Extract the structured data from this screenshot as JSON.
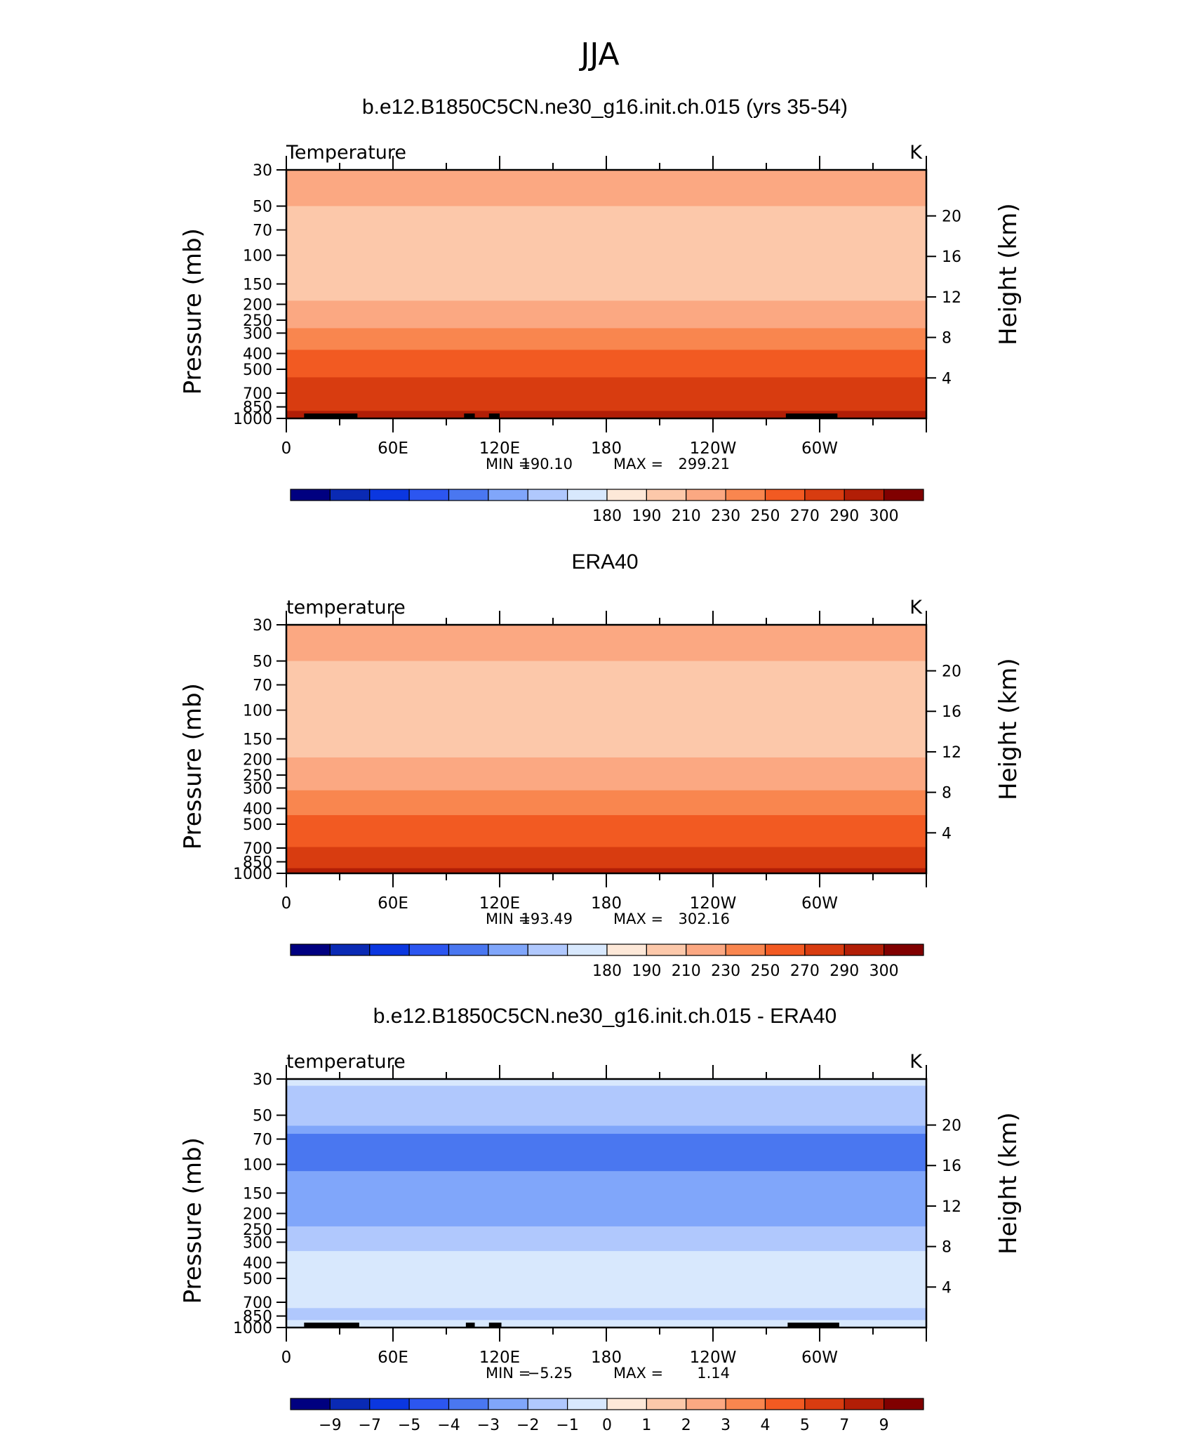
{
  "figure_title": "JJA",
  "chart_data": [
    {
      "type": "heatmap",
      "title": "b.e12.B1850C5CN.ne30_g16.init.ch.015 (yrs 35-54)",
      "variable_label": "Temperature",
      "units": "K",
      "ylabel": "Pressure (mb)",
      "ylabel_right": "Height (km)",
      "yscale": "log",
      "ylim": [
        1000,
        30
      ],
      "pressure_ticks": [
        "30",
        "50",
        "70",
        "100",
        "150",
        "200",
        "250",
        "300",
        "400",
        "500",
        "700",
        "850",
        "1000"
      ],
      "height_ticks": [
        "20",
        "16",
        "12",
        "8",
        "4"
      ],
      "x_ticks": [
        "0",
        "60E",
        "120E",
        "180",
        "120W",
        "60W"
      ],
      "stats": {
        "min_label": "MIN =",
        "min": "190.10",
        "max_label": "MAX =",
        "max": "299.21"
      },
      "colorbar": {
        "labels": [
          "180",
          "190",
          "210",
          "230",
          "250",
          "270",
          "290",
          "300"
        ],
        "colors": [
          "#000080",
          "#0a2ab4",
          "#0b37e0",
          "#2c56f0",
          "#4a77f0",
          "#80a6fa",
          "#b0c8fd",
          "#d8e8fd",
          "#fde8d8",
          "#fcc8aa",
          "#fba882",
          "#f9864f",
          "#f25a22",
          "#d83c10",
          "#b21e06",
          "#800000"
        ]
      },
      "levels": [
        {
          "p_top": 30,
          "p_bottom": 50,
          "value": 210
        },
        {
          "p_top": 50,
          "p_bottom": 70,
          "value": 205
        },
        {
          "p_top": 70,
          "p_bottom": 145,
          "value": 198
        },
        {
          "p_top": 145,
          "p_bottom": 190,
          "value": 205
        },
        {
          "p_top": 190,
          "p_bottom": 240,
          "value": 215
        },
        {
          "p_top": 240,
          "p_bottom": 280,
          "value": 225
        },
        {
          "p_top": 280,
          "p_bottom": 320,
          "value": 235
        },
        {
          "p_top": 320,
          "p_bottom": 380,
          "value": 245
        },
        {
          "p_top": 380,
          "p_bottom": 450,
          "value": 255
        },
        {
          "p_top": 450,
          "p_bottom": 560,
          "value": 262
        },
        {
          "p_top": 560,
          "p_bottom": 730,
          "value": 272
        },
        {
          "p_top": 730,
          "p_bottom": 900,
          "value": 282
        },
        {
          "p_top": 900,
          "p_bottom": 1000,
          "value": 292
        }
      ],
      "topography": [
        [
          10,
          40
        ],
        [
          100,
          106
        ],
        [
          114,
          120
        ],
        [
          281,
          310
        ]
      ]
    },
    {
      "type": "heatmap",
      "title": "ERA40",
      "variable_label": "temperature",
      "units": "K",
      "ylabel": "Pressure (mb)",
      "ylabel_right": "Height (km)",
      "yscale": "log",
      "ylim": [
        1000,
        30
      ],
      "pressure_ticks": [
        "30",
        "50",
        "70",
        "100",
        "150",
        "200",
        "250",
        "300",
        "400",
        "500",
        "700",
        "850",
        "1000"
      ],
      "height_ticks": [
        "20",
        "16",
        "12",
        "8",
        "4"
      ],
      "x_ticks": [
        "0",
        "60E",
        "120E",
        "180",
        "120W",
        "60W"
      ],
      "stats": {
        "min_label": "MIN =",
        "min": "193.49",
        "max_label": "MAX =",
        "max": "302.16"
      },
      "colorbar": {
        "labels": [
          "180",
          "190",
          "210",
          "230",
          "250",
          "270",
          "290",
          "300"
        ],
        "colors": [
          "#000080",
          "#0a2ab4",
          "#0b37e0",
          "#2c56f0",
          "#4a77f0",
          "#80a6fa",
          "#b0c8fd",
          "#d8e8fd",
          "#fde8d8",
          "#fcc8aa",
          "#fba882",
          "#f9864f",
          "#f25a22",
          "#d83c10",
          "#b21e06",
          "#800000"
        ]
      },
      "levels": [
        {
          "p_top": 30,
          "p_bottom": 50,
          "value": 210
        },
        {
          "p_top": 50,
          "p_bottom": 85,
          "value": 205
        },
        {
          "p_top": 85,
          "p_bottom": 135,
          "value": 198
        },
        {
          "p_top": 135,
          "p_bottom": 195,
          "value": 205
        },
        {
          "p_top": 195,
          "p_bottom": 255,
          "value": 215
        },
        {
          "p_top": 255,
          "p_bottom": 310,
          "value": 225
        },
        {
          "p_top": 310,
          "p_bottom": 370,
          "value": 235
        },
        {
          "p_top": 370,
          "p_bottom": 440,
          "value": 245
        },
        {
          "p_top": 440,
          "p_bottom": 540,
          "value": 255
        },
        {
          "p_top": 540,
          "p_bottom": 690,
          "value": 265
        },
        {
          "p_top": 690,
          "p_bottom": 840,
          "value": 275
        },
        {
          "p_top": 840,
          "p_bottom": 930,
          "value": 285
        },
        {
          "p_top": 930,
          "p_bottom": 1000,
          "value": 295
        }
      ],
      "topography": []
    },
    {
      "type": "heatmap",
      "title": "b.e12.B1850C5CN.ne30_g16.init.ch.015 - ERA40",
      "variable_label": "temperature",
      "units": "K",
      "ylabel": "Pressure (mb)",
      "ylabel_right": "Height (km)",
      "yscale": "log",
      "ylim": [
        1000,
        30
      ],
      "pressure_ticks": [
        "30",
        "50",
        "70",
        "100",
        "150",
        "200",
        "250",
        "300",
        "400",
        "500",
        "700",
        "850",
        "1000"
      ],
      "height_ticks": [
        "20",
        "16",
        "12",
        "8",
        "4"
      ],
      "x_ticks": [
        "0",
        "60E",
        "120E",
        "180",
        "120W",
        "60W"
      ],
      "stats": {
        "min_label": "MIN =",
        "min": "−5.25",
        "max_label": "MAX =",
        "max": "1.14"
      },
      "colorbar": {
        "labels": [
          "−9",
          "−7",
          "−5",
          "−4",
          "−3",
          "−2",
          "−1",
          "0",
          "1",
          "2",
          "3",
          "4",
          "5",
          "7",
          "9"
        ],
        "colors": [
          "#000080",
          "#0a2ab4",
          "#0b37e0",
          "#2c56f0",
          "#4a77f0",
          "#80a6fa",
          "#b0c8fd",
          "#d8e8fd",
          "#fde8d8",
          "#fcc8aa",
          "#fba882",
          "#f9864f",
          "#f25a22",
          "#d83c10",
          "#b21e06",
          "#800000"
        ]
      },
      "levels": [
        {
          "p_top": 30,
          "p_bottom": 33,
          "value": -0.5
        },
        {
          "p_top": 33,
          "p_bottom": 58,
          "value": -1.5
        },
        {
          "p_top": 58,
          "p_bottom": 65,
          "value": -2.5
        },
        {
          "p_top": 65,
          "p_bottom": 110,
          "value": -3.5
        },
        {
          "p_top": 110,
          "p_bottom": 240,
          "value": -2.5
        },
        {
          "p_top": 240,
          "p_bottom": 340,
          "value": -1.5
        },
        {
          "p_top": 340,
          "p_bottom": 760,
          "value": -0.5
        },
        {
          "p_top": 760,
          "p_bottom": 900,
          "value": -1.5
        },
        {
          "p_top": 900,
          "p_bottom": 1000,
          "value": -0.5
        }
      ],
      "topography": [
        [
          10,
          41
        ],
        [
          101,
          106
        ],
        [
          114,
          121
        ],
        [
          282,
          311
        ]
      ]
    }
  ]
}
